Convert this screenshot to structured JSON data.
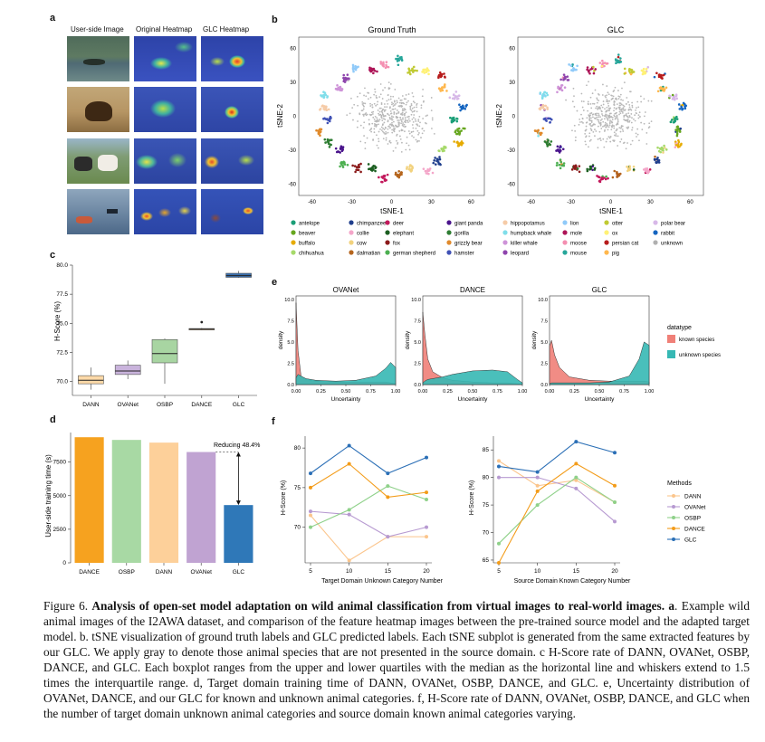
{
  "panels": {
    "a": "a",
    "b": "b",
    "c": "c",
    "d": "d",
    "e": "e",
    "f": "f"
  },
  "panel_a": {
    "col_headers": [
      "User-side Image",
      "Original Heatmap",
      "GLC Heatmap"
    ]
  },
  "panel_b": {
    "titles": [
      "Ground Truth",
      "GLC"
    ],
    "xlabel": "tSNE-1",
    "ylabel": "tSNE-2",
    "ticks": [
      "-60",
      "-30",
      "0",
      "30",
      "60"
    ],
    "legend": [
      {
        "label": "antelope",
        "color": "#1a9e77"
      },
      {
        "label": "beaver",
        "color": "#66a61e"
      },
      {
        "label": "buffalo",
        "color": "#e6ab02"
      },
      {
        "label": "chihuahua",
        "color": "#a6d96a"
      },
      {
        "label": "chimpanzee",
        "color": "#1f3e8c"
      },
      {
        "label": "collie",
        "color": "#f4a6c9"
      },
      {
        "label": "cow",
        "color": "#f2d27e"
      },
      {
        "label": "dalmatian",
        "color": "#b5651d"
      },
      {
        "label": "deer",
        "color": "#c2185b"
      },
      {
        "label": "elephant",
        "color": "#1b5e20"
      },
      {
        "label": "fox",
        "color": "#8b1a1a"
      },
      {
        "label": "german shepherd",
        "color": "#4caf50"
      },
      {
        "label": "giant panda",
        "color": "#4a148c"
      },
      {
        "label": "gorilla",
        "color": "#2e7d32"
      },
      {
        "label": "grizzly bear",
        "color": "#e08a2c"
      },
      {
        "label": "hamster",
        "color": "#3f51b5"
      },
      {
        "label": "hippopotamus",
        "color": "#f5cba7"
      },
      {
        "label": "humpback whale",
        "color": "#80deea"
      },
      {
        "label": "killer whale",
        "color": "#ce93d8"
      },
      {
        "label": "leopard",
        "color": "#8e44ad"
      },
      {
        "label": "lion",
        "color": "#90caf9"
      },
      {
        "label": "mole",
        "color": "#ad1457"
      },
      {
        "label": "moose",
        "color": "#f48fb1"
      },
      {
        "label": "mouse",
        "color": "#26a69a"
      },
      {
        "label": "otter",
        "color": "#c0ca33"
      },
      {
        "label": "ox",
        "color": "#fff176"
      },
      {
        "label": "persian cat",
        "color": "#b71c1c"
      },
      {
        "label": "pig",
        "color": "#ffb74d"
      },
      {
        "label": "polar bear",
        "color": "#d7b8e8"
      },
      {
        "label": "rabbit",
        "color": "#1565c0"
      },
      {
        "label": "unknown",
        "color": "#b0b0b0"
      }
    ]
  },
  "panel_c": {
    "ylabel": "H-Score (%)",
    "chart_data": {
      "type": "box",
      "categories": [
        "DANN",
        "OVANet",
        "OSBP",
        "DANCE",
        "GLC"
      ],
      "ylim": [
        68.8,
        80.0
      ],
      "yticks": [
        "70.0",
        "72.5",
        "75.0",
        "77.5",
        "80.0"
      ],
      "colors": [
        "#fdd9a8",
        "#c9b3dc",
        "#a8d5a2",
        "#f7b870",
        "#3a6fae"
      ],
      "boxes": [
        {
          "name": "DANN",
          "min": 69.3,
          "q1": 69.8,
          "median": 70.1,
          "q3": 70.5,
          "max": 71.2
        },
        {
          "name": "OVANet",
          "min": 70.2,
          "q1": 70.6,
          "median": 70.9,
          "q3": 71.4,
          "max": 71.8
        },
        {
          "name": "OSBP",
          "min": 69.8,
          "q1": 71.6,
          "median": 72.4,
          "q3": 73.6,
          "max": 73.7
        },
        {
          "name": "DANCE",
          "min": 74.4,
          "q1": 74.45,
          "median": 74.5,
          "q3": 74.55,
          "max": 74.6,
          "outlier": 75.1
        },
        {
          "name": "GLC",
          "min": 78.9,
          "q1": 78.95,
          "median": 79.1,
          "q3": 79.3,
          "max": 79.5
        }
      ]
    }
  },
  "panel_d": {
    "ylabel": "User-side training time (s)",
    "annotation": "Reducing 48.4%",
    "chart_data": {
      "type": "bar",
      "categories": [
        "DANCE",
        "OSBP",
        "DANN",
        "OVANet",
        "GLC"
      ],
      "values": [
        9350,
        9150,
        8950,
        8250,
        4300
      ],
      "ylim": [
        0,
        9700
      ],
      "yticks": [
        "0",
        "2500",
        "5000",
        "7500"
      ],
      "colors": [
        "#f6a21f",
        "#a8d9a4",
        "#fdd09a",
        "#c0a3d2",
        "#2f78b8"
      ]
    }
  },
  "panel_e": {
    "titles": [
      "OVANet",
      "DANCE",
      "GLC"
    ],
    "xlabel": "Uncertainty",
    "ylabel": "density",
    "xticks": [
      "0.00",
      "0.25",
      "0.50",
      "0.75",
      "1.00"
    ],
    "yticks": [
      "0.0",
      "2.5",
      "5.0",
      "7.5",
      "10.0"
    ],
    "legend_title": "datatype",
    "legend": [
      {
        "label": "known species",
        "color": "#f08078"
      },
      {
        "label": "unknown species",
        "color": "#36b8b4"
      }
    ],
    "chart_data": [
      {
        "type": "area",
        "title": "OVANet",
        "x": [
          0,
          0.02,
          0.05,
          0.1,
          0.2,
          0.4,
          0.6,
          0.8,
          0.9,
          0.95,
          1.0
        ],
        "series": [
          {
            "name": "known species",
            "values": [
              9.6,
              4.0,
              1.0,
              0.6,
              0.4,
              0.3,
              0.3,
              0.3,
              0.3,
              0.2,
              0.1
            ]
          },
          {
            "name": "unknown species",
            "values": [
              0.8,
              1.2,
              1.0,
              0.7,
              0.5,
              0.4,
              0.5,
              1.0,
              1.9,
              2.6,
              2.0
            ]
          }
        ]
      },
      {
        "type": "area",
        "title": "DANCE",
        "x": [
          0,
          0.02,
          0.05,
          0.1,
          0.2,
          0.3,
          0.5,
          0.7,
          0.85,
          0.95,
          1.0
        ],
        "series": [
          {
            "name": "known species",
            "values": [
              8.5,
              6.0,
              3.0,
              1.5,
              0.8,
              0.5,
              0.3,
              0.2,
              0.2,
              0.1,
              0.1
            ]
          },
          {
            "name": "unknown species",
            "values": [
              0.2,
              0.4,
              0.6,
              0.7,
              0.9,
              1.2,
              1.6,
              1.7,
              1.5,
              0.6,
              0.2
            ]
          }
        ]
      },
      {
        "type": "area",
        "title": "GLC",
        "x": [
          0,
          0.02,
          0.05,
          0.1,
          0.2,
          0.4,
          0.6,
          0.8,
          0.9,
          0.95,
          1.0
        ],
        "series": [
          {
            "name": "known species",
            "values": [
              4.5,
              5.2,
              3.5,
              2.0,
              0.9,
              0.5,
              0.4,
              0.4,
              0.4,
              0.4,
              0.3
            ]
          },
          {
            "name": "unknown species",
            "values": [
              0.1,
              0.2,
              0.2,
              0.2,
              0.2,
              0.2,
              0.3,
              1.0,
              3.0,
              5.0,
              4.6
            ]
          }
        ]
      }
    ]
  },
  "panel_f": {
    "ylabel": "H-Score (%)",
    "legend_title": "Methods",
    "charts": [
      {
        "xlabel": "Target Domain Unknown Category Number"
      },
      {
        "xlabel": "Source Domain Known Category Number"
      }
    ],
    "chart_data": [
      {
        "type": "line",
        "x": [
          5,
          10,
          15,
          20
        ],
        "ylim": [
          65.5,
          81.5
        ],
        "yticks": [
          "70",
          "75",
          "80"
        ],
        "series": [
          {
            "name": "DANN",
            "color": "#fbc58c",
            "values": [
              71.5,
              65.8,
              68.8,
              68.8
            ]
          },
          {
            "name": "OVANet",
            "color": "#b79ad1",
            "values": [
              72.0,
              71.6,
              68.8,
              70.0
            ]
          },
          {
            "name": "OSBP",
            "color": "#8fd18a",
            "values": [
              70.0,
              72.2,
              75.2,
              73.5
            ]
          },
          {
            "name": "DANCE",
            "color": "#f39c1a",
            "values": [
              75.0,
              78.0,
              73.8,
              74.4
            ]
          },
          {
            "name": "GLC",
            "color": "#2b6fb6",
            "values": [
              76.8,
              80.3,
              76.8,
              78.8
            ]
          }
        ]
      },
      {
        "type": "line",
        "x": [
          5,
          10,
          15,
          20
        ],
        "ylim": [
          64.5,
          87.5
        ],
        "yticks": [
          "65",
          "70",
          "75",
          "80",
          "85"
        ],
        "series": [
          {
            "name": "DANN",
            "color": "#fbc58c",
            "values": [
              83.0,
              78.5,
              79.5,
              75.5
            ]
          },
          {
            "name": "OVANet",
            "color": "#b79ad1",
            "values": [
              80.0,
              80.0,
              78.0,
              72.0
            ]
          },
          {
            "name": "OSBP",
            "color": "#8fd18a",
            "values": [
              68.0,
              75.0,
              80.0,
              75.5
            ]
          },
          {
            "name": "DANCE",
            "color": "#f39c1a",
            "values": [
              64.5,
              77.5,
              82.5,
              78.5
            ]
          },
          {
            "name": "GLC",
            "color": "#2b6fb6",
            "values": [
              82.0,
              81.0,
              86.5,
              84.5
            ]
          }
        ]
      }
    ]
  },
  "caption": {
    "prefix": "Figure 6. ",
    "bold": "Analysis of open-set model adaptation on wild animal classification from virtual images to real-world images. a",
    "rest": ". Example wild animal images of the I2AWA dataset, and comparison of the feature heatmap images between the pre-trained source model and the adapted target model. b. tSNE visualization of ground truth labels and GLC predicted labels. Each tSNE subplot is generated from the same extracted features by our GLC. We apply gray to denote those animal species that are not presented in the source domain. c H-Score rate of DANN, OVANet, OSBP, DANCE, and GLC. Each boxplot ranges from the upper and lower quartiles with the median as the horizontal line and whiskers extend to 1.5 times the interquartile range. d, Target domain training time of DANN, OVANet, OSBP, DANCE, and GLC. e, Uncertainty distribution of OVANet, DANCE, and our GLC for known and unknown animal categories. f, H-Score rate of DANN, OVANet, OSBP, DANCE, and GLC when the number of target domain unknown animal categories and source domain known animal categories varying."
  }
}
